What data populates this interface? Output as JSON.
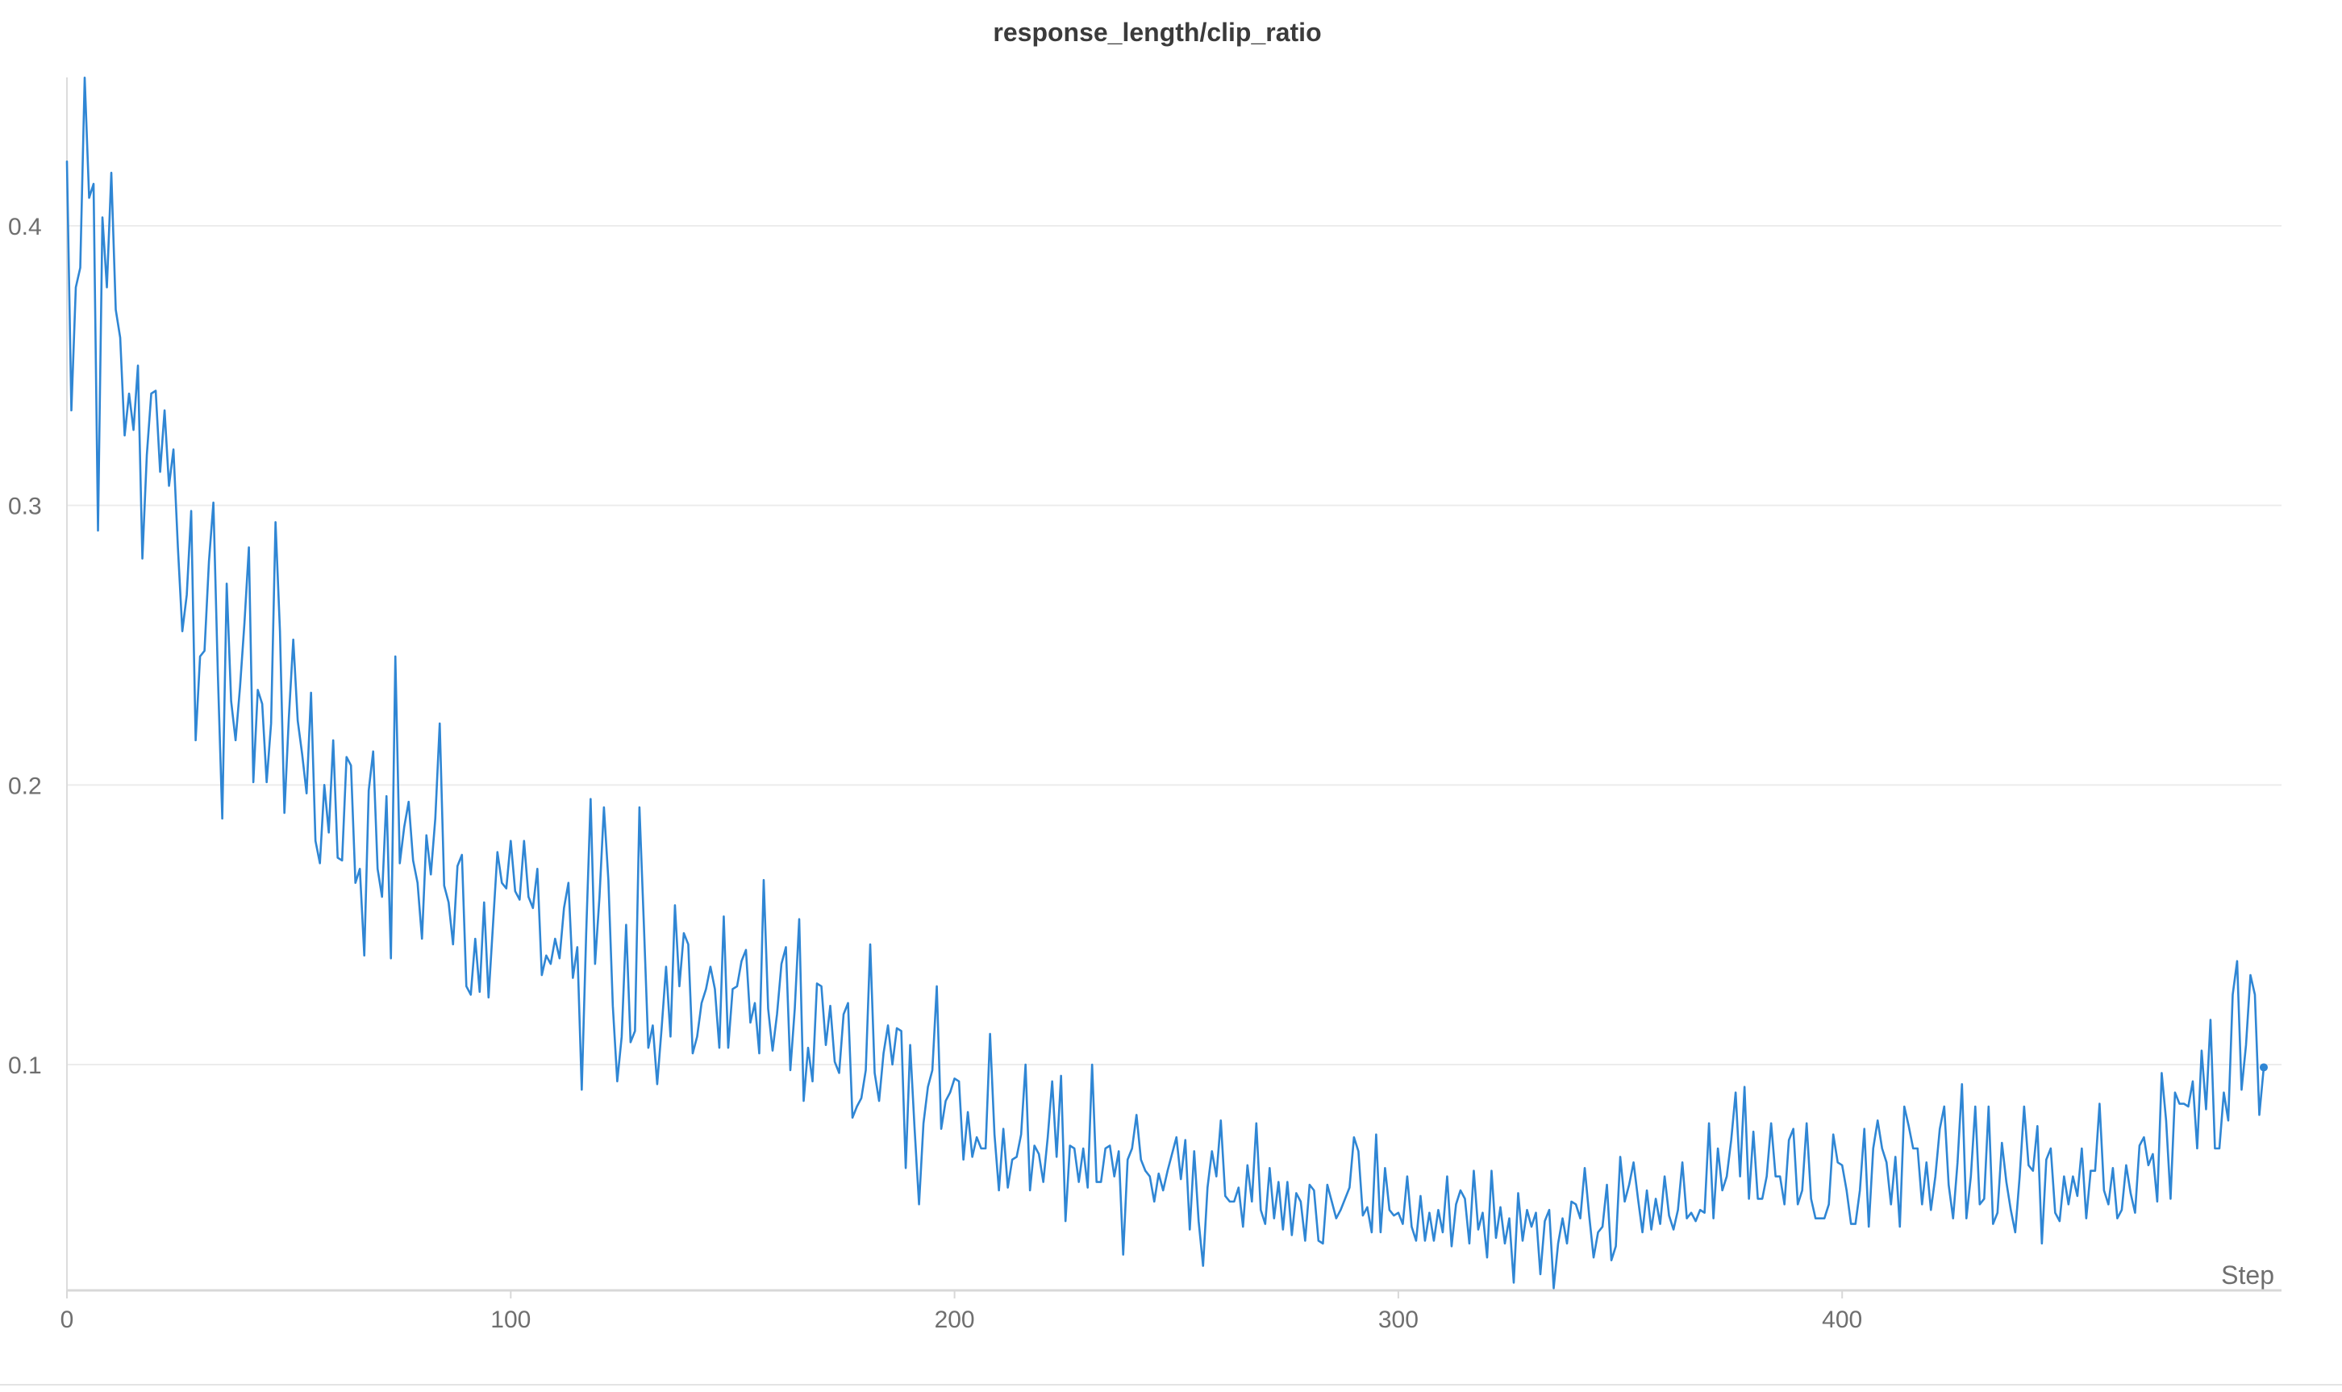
{
  "chart_data": {
    "type": "line",
    "title": "response_length/clip_ratio",
    "xlabel": "Step",
    "ylabel": "",
    "xlim": [
      0,
      499
    ],
    "ylim": [
      0.02,
      0.455
    ],
    "x_ticks": [
      0,
      100,
      200,
      300,
      400
    ],
    "y_ticks": [
      0.1,
      0.2,
      0.3,
      0.4
    ],
    "grid": true,
    "legend": "none",
    "line_color": "#2f86d4",
    "series": [
      {
        "x_start": 0,
        "x_step": 1,
        "values": [
          0.423,
          0.334,
          0.378,
          0.385,
          0.453,
          0.41,
          0.415,
          0.291,
          0.403,
          0.378,
          0.419,
          0.37,
          0.36,
          0.325,
          0.34,
          0.327,
          0.35,
          0.281,
          0.318,
          0.34,
          0.341,
          0.312,
          0.334,
          0.307,
          0.32,
          0.285,
          0.255,
          0.268,
          0.298,
          0.216,
          0.246,
          0.248,
          0.28,
          0.301,
          0.24,
          0.188,
          0.272,
          0.23,
          0.216,
          0.235,
          0.258,
          0.285,
          0.201,
          0.234,
          0.229,
          0.201,
          0.222,
          0.294,
          0.255,
          0.19,
          0.224,
          0.252,
          0.223,
          0.211,
          0.197,
          0.233,
          0.18,
          0.172,
          0.2,
          0.183,
          0.216,
          0.174,
          0.173,
          0.21,
          0.207,
          0.165,
          0.17,
          0.139,
          0.198,
          0.212,
          0.17,
          0.16,
          0.196,
          0.138,
          0.246,
          0.172,
          0.185,
          0.194,
          0.173,
          0.165,
          0.145,
          0.182,
          0.168,
          0.188,
          0.222,
          0.164,
          0.158,
          0.143,
          0.171,
          0.175,
          0.128,
          0.125,
          0.145,
          0.126,
          0.158,
          0.124,
          0.15,
          0.176,
          0.165,
          0.163,
          0.18,
          0.162,
          0.159,
          0.18,
          0.16,
          0.156,
          0.17,
          0.132,
          0.139,
          0.136,
          0.145,
          0.138,
          0.156,
          0.165,
          0.131,
          0.142,
          0.091,
          0.147,
          0.195,
          0.136,
          0.16,
          0.192,
          0.166,
          0.121,
          0.094,
          0.11,
          0.15,
          0.108,
          0.112,
          0.192,
          0.15,
          0.106,
          0.114,
          0.093,
          0.113,
          0.135,
          0.11,
          0.157,
          0.128,
          0.147,
          0.143,
          0.104,
          0.11,
          0.122,
          0.127,
          0.135,
          0.127,
          0.106,
          0.153,
          0.106,
          0.127,
          0.128,
          0.137,
          0.141,
          0.115,
          0.122,
          0.104,
          0.166,
          0.12,
          0.105,
          0.118,
          0.136,
          0.142,
          0.098,
          0.12,
          0.152,
          0.087,
          0.106,
          0.094,
          0.129,
          0.128,
          0.107,
          0.121,
          0.101,
          0.097,
          0.118,
          0.122,
          0.081,
          0.085,
          0.088,
          0.098,
          0.143,
          0.097,
          0.087,
          0.104,
          0.114,
          0.1,
          0.113,
          0.112,
          0.063,
          0.107,
          0.077,
          0.05,
          0.079,
          0.092,
          0.098,
          0.128,
          0.077,
          0.087,
          0.09,
          0.095,
          0.094,
          0.066,
          0.083,
          0.067,
          0.074,
          0.07,
          0.07,
          0.111,
          0.075,
          0.055,
          0.077,
          0.056,
          0.066,
          0.067,
          0.075,
          0.1,
          0.055,
          0.071,
          0.068,
          0.058,
          0.074,
          0.094,
          0.067,
          0.096,
          0.044,
          0.071,
          0.07,
          0.058,
          0.07,
          0.056,
          0.1,
          0.058,
          0.058,
          0.07,
          0.071,
          0.06,
          0.069,
          0.032,
          0.066,
          0.07,
          0.082,
          0.066,
          0.062,
          0.06,
          0.051,
          0.061,
          0.055,
          0.062,
          0.068,
          0.074,
          0.059,
          0.073,
          0.041,
          0.069,
          0.044,
          0.028,
          0.056,
          0.069,
          0.06,
          0.08,
          0.053,
          0.051,
          0.051,
          0.056,
          0.042,
          0.064,
          0.051,
          0.079,
          0.048,
          0.043,
          0.063,
          0.045,
          0.058,
          0.041,
          0.058,
          0.039,
          0.054,
          0.051,
          0.037,
          0.057,
          0.055,
          0.037,
          0.036,
          0.057,
          0.051,
          0.045,
          0.048,
          0.052,
          0.056,
          0.074,
          0.069,
          0.046,
          0.049,
          0.04,
          0.075,
          0.04,
          0.063,
          0.048,
          0.046,
          0.047,
          0.043,
          0.06,
          0.042,
          0.037,
          0.053,
          0.037,
          0.047,
          0.037,
          0.048,
          0.04,
          0.06,
          0.035,
          0.05,
          0.055,
          0.052,
          0.036,
          0.062,
          0.041,
          0.047,
          0.031,
          0.062,
          0.038,
          0.049,
          0.036,
          0.045,
          0.022,
          0.054,
          0.037,
          0.048,
          0.042,
          0.047,
          0.025,
          0.044,
          0.048,
          0.02,
          0.036,
          0.045,
          0.036,
          0.051,
          0.05,
          0.045,
          0.063,
          0.046,
          0.031,
          0.04,
          0.042,
          0.057,
          0.03,
          0.035,
          0.067,
          0.051,
          0.057,
          0.065,
          0.052,
          0.04,
          0.055,
          0.041,
          0.052,
          0.043,
          0.06,
          0.046,
          0.041,
          0.048,
          0.065,
          0.045,
          0.047,
          0.044,
          0.048,
          0.047,
          0.079,
          0.045,
          0.07,
          0.055,
          0.06,
          0.073,
          0.09,
          0.06,
          0.092,
          0.052,
          0.076,
          0.052,
          0.052,
          0.06,
          0.079,
          0.06,
          0.06,
          0.05,
          0.073,
          0.077,
          0.05,
          0.055,
          0.079,
          0.052,
          0.045,
          0.045,
          0.045,
          0.05,
          0.075,
          0.065,
          0.064,
          0.055,
          0.043,
          0.043,
          0.055,
          0.077,
          0.042,
          0.07,
          0.08,
          0.07,
          0.065,
          0.05,
          0.067,
          0.042,
          0.085,
          0.078,
          0.07,
          0.07,
          0.05,
          0.065,
          0.048,
          0.06,
          0.077,
          0.085,
          0.057,
          0.045,
          0.065,
          0.093,
          0.045,
          0.06,
          0.085,
          0.05,
          0.052,
          0.085,
          0.043,
          0.047,
          0.072,
          0.058,
          0.048,
          0.04,
          0.06,
          0.085,
          0.064,
          0.062,
          0.078,
          0.036,
          0.066,
          0.07,
          0.047,
          0.044,
          0.06,
          0.05,
          0.06,
          0.053,
          0.07,
          0.045,
          0.062,
          0.062,
          0.086,
          0.055,
          0.05,
          0.063,
          0.045,
          0.048,
          0.064,
          0.054,
          0.047,
          0.071,
          0.074,
          0.064,
          0.068,
          0.051,
          0.097,
          0.08,
          0.052,
          0.09,
          0.086,
          0.086,
          0.085,
          0.094,
          0.07,
          0.105,
          0.084,
          0.116,
          0.07,
          0.07,
          0.09,
          0.08,
          0.125,
          0.137,
          0.091,
          0.107,
          0.132,
          0.125,
          0.082,
          0.099
        ]
      }
    ]
  }
}
